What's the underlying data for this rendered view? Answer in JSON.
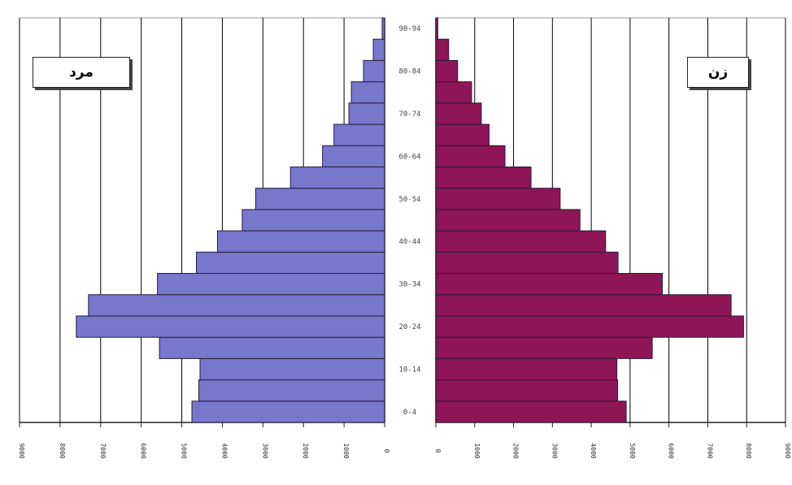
{
  "chart_data": {
    "type": "bar",
    "orientation": "population-pyramid",
    "age_labels": [
      "0-4",
      "",
      "10-14",
      "",
      "20-24",
      "",
      "30-34",
      "",
      "40-44",
      "",
      "50-54",
      "",
      "60-64",
      "",
      "70-74",
      "",
      "80-84",
      "",
      "90-94"
    ],
    "series": [
      {
        "name": "مرد",
        "side": "left",
        "values": [
          4750,
          4580,
          4550,
          5550,
          7600,
          7300,
          5600,
          4640,
          4120,
          3510,
          3180,
          2320,
          1530,
          1250,
          880,
          820,
          520,
          280,
          60
        ]
      },
      {
        "name": "زن",
        "side": "right",
        "values": [
          4900,
          4680,
          4660,
          5570,
          7920,
          7600,
          5830,
          4690,
          4370,
          3710,
          3200,
          2450,
          1780,
          1370,
          1170,
          920,
          560,
          330,
          50
        ]
      }
    ],
    "xlim": [
      0,
      9000
    ],
    "tick_step": 1000,
    "grid": true,
    "colors": {
      "male": "#7777cc",
      "female": "#8e1556",
      "bar_stroke": "#2a1a3a",
      "grid": "#000000"
    }
  },
  "legend": {
    "male_label": "مرد",
    "female_label": "زن"
  }
}
